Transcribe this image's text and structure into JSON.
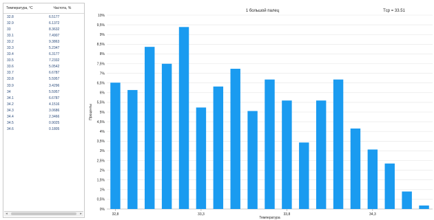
{
  "table": {
    "headers": [
      "Температура, °С",
      "Частота, %"
    ],
    "rows": [
      [
        "32.8",
        "6.5177"
      ],
      [
        "32.9",
        "6.1372"
      ],
      [
        "33",
        "8.3632"
      ],
      [
        "33.1",
        "7.4907"
      ],
      [
        "33.2",
        "9.3863"
      ],
      [
        "33.3",
        "5.2347"
      ],
      [
        "33.4",
        "6.3177"
      ],
      [
        "33.5",
        "7.2332"
      ],
      [
        "33.6",
        "5.0542"
      ],
      [
        "33.7",
        "6.6787"
      ],
      [
        "33.8",
        "5.5957"
      ],
      [
        "33.9",
        "3.4296"
      ],
      [
        "34",
        "5.5957"
      ],
      [
        "34.1",
        "6.6787"
      ],
      [
        "34.2",
        "4.1516"
      ],
      [
        "34.3",
        "3.0686"
      ],
      [
        "34.4",
        "2.3466"
      ],
      [
        "34.5",
        "0.9025"
      ],
      [
        "34.6",
        "0.1805"
      ]
    ]
  },
  "chart_data": {
    "type": "bar",
    "title": "1 большой палец",
    "annotation": "Tср = 33.51",
    "xlabel": "Температура",
    "ylabel": "Проценты",
    "categories": [
      "32.8",
      "32.9",
      "33",
      "33.1",
      "33.2",
      "33.3",
      "33.4",
      "33.5",
      "33.6",
      "33.7",
      "33.8",
      "33.9",
      "34",
      "34.1",
      "34.2",
      "34.3",
      "34.4",
      "34.5",
      "34.6"
    ],
    "values": [
      6.5177,
      6.1372,
      8.3632,
      7.4907,
      9.3863,
      5.2347,
      6.3177,
      7.2332,
      5.0542,
      6.6787,
      5.5957,
      3.4296,
      5.5957,
      6.6787,
      4.1516,
      3.0686,
      2.3466,
      0.9025,
      0.1805
    ],
    "x_tick_labels": [
      "32,8",
      "33,3",
      "33,8",
      "34,3"
    ],
    "y_tick_labels": [
      "0%",
      "0,5%",
      "1%",
      "1,5%",
      "2%",
      "2,5%",
      "3%",
      "3,5%",
      "4%",
      "4,5%",
      "5%",
      "5,5%",
      "6%",
      "6,5%",
      "7%",
      "7,5%",
      "8%",
      "8,5%",
      "9%",
      "9,5%",
      "10%"
    ],
    "ylim": [
      0,
      10
    ],
    "bar_color": "#1a9bf0",
    "grid": true
  }
}
